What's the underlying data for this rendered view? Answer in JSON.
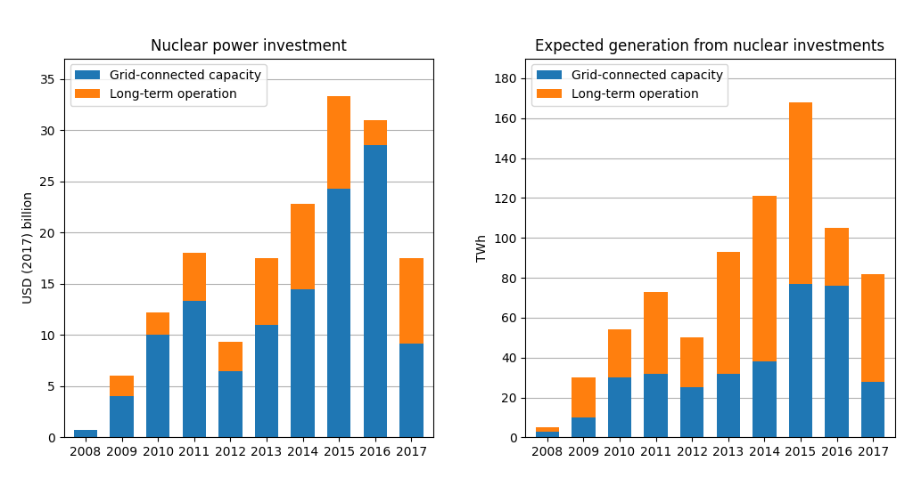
{
  "chart_data": [
    {
      "type": "bar",
      "stacked": true,
      "title": "Nuclear power investment",
      "ylabel": "USD (2017) billion",
      "categories": [
        "2008",
        "2009",
        "2010",
        "2011",
        "2012",
        "2013",
        "2014",
        "2015",
        "2016",
        "2017"
      ],
      "series": [
        {
          "name": "Grid-connected capacity",
          "values": [
            0.7,
            4.0,
            10.0,
            13.3,
            6.5,
            11.0,
            14.5,
            24.3,
            28.5,
            9.2
          ]
        },
        {
          "name": "Long-term operation",
          "values": [
            0.0,
            2.0,
            2.2,
            4.7,
            2.8,
            6.5,
            8.3,
            9.0,
            2.5,
            8.3
          ]
        }
      ],
      "ylim": [
        0,
        37
      ],
      "yticks": [
        0,
        5,
        10,
        15,
        20,
        25,
        30,
        35
      ],
      "grid": true,
      "legend": "upper left"
    },
    {
      "type": "bar",
      "stacked": true,
      "title": "Expected generation from nuclear investments",
      "ylabel": "TWh",
      "categories": [
        "2008",
        "2009",
        "2010",
        "2011",
        "2012",
        "2013",
        "2014",
        "2015",
        "2016",
        "2017"
      ],
      "series": [
        {
          "name": "Grid-connected capacity",
          "values": [
            3.0,
            10.0,
            30.0,
            32.0,
            25.0,
            32.0,
            38.0,
            77.0,
            76.0,
            28.0
          ]
        },
        {
          "name": "Long-term operation",
          "values": [
            2.0,
            20.0,
            24.0,
            41.0,
            25.0,
            61.0,
            83.0,
            91.0,
            29.0,
            54.0
          ]
        }
      ],
      "ylim": [
        0,
        190
      ],
      "yticks": [
        0,
        20,
        40,
        60,
        80,
        100,
        120,
        140,
        160,
        180
      ],
      "grid": true,
      "legend": "upper left"
    }
  ]
}
